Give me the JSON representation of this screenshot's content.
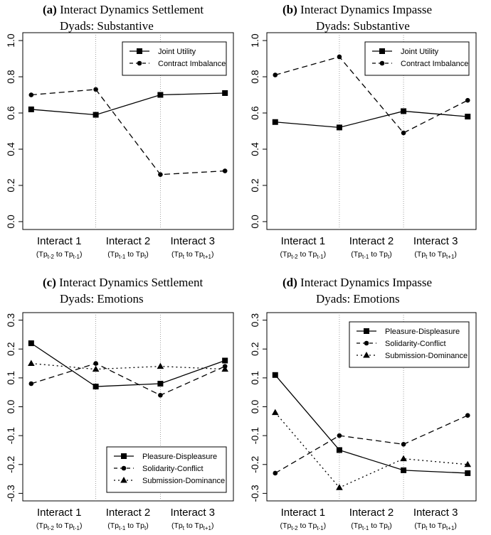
{
  "chart_data": [
    {
      "id": "a",
      "type": "line",
      "title_prefix": "(a)",
      "title_line1": "Interact Dynamics Settlement",
      "title_line2": "Dyads: Substantive",
      "categories": [
        "Interact 1",
        "Interact 2",
        "Interact 3"
      ],
      "category_subtitles": [
        "(Tp_{t-2} to Tp_{t-1})",
        "(Tp_{t-1} to Tp_{t})",
        "(Tp_{t} to Tp_{t+1})"
      ],
      "x": [
        0,
        1,
        2,
        3
      ],
      "ylim": [
        0,
        1
      ],
      "yticks": [
        0.0,
        0.2,
        0.4,
        0.6,
        0.8,
        1.0
      ],
      "ytick_labels": [
        "0.0",
        "0.2",
        "0.4",
        "0.6",
        "0.8",
        "1.0"
      ],
      "legend_position": "top-right",
      "series": [
        {
          "name": "Joint Utility",
          "linestyle": "solid",
          "marker": "square",
          "values": [
            0.62,
            0.59,
            0.7,
            0.71
          ]
        },
        {
          "name": "Contract Imbalance",
          "linestyle": "dashed",
          "marker": "circle",
          "values": [
            0.7,
            0.73,
            0.26,
            0.28
          ]
        }
      ]
    },
    {
      "id": "b",
      "type": "line",
      "title_prefix": "(b)",
      "title_line1": "Interact Dynamics Impasse",
      "title_line2": "Dyads: Substantive",
      "categories": [
        "Interact 1",
        "Interact 2",
        "Interact 3"
      ],
      "category_subtitles": [
        "(Tp_{t-2} to Tp_{t-1})",
        "(Tp_{t-1} to Tp_{t})",
        "(Tp_{t} to Tp_{t+1})"
      ],
      "x": [
        0,
        1,
        2,
        3
      ],
      "ylim": [
        0,
        1
      ],
      "yticks": [
        0.0,
        0.2,
        0.4,
        0.6,
        0.8,
        1.0
      ],
      "ytick_labels": [
        "0.0",
        "0.2",
        "0.4",
        "0.6",
        "0.8",
        "1.0"
      ],
      "legend_position": "top-right",
      "series": [
        {
          "name": "Joint Utility",
          "linestyle": "solid",
          "marker": "square",
          "values": [
            0.55,
            0.52,
            0.61,
            0.58
          ]
        },
        {
          "name": "Contract Imbalance",
          "linestyle": "dashed",
          "marker": "circle",
          "values": [
            0.81,
            0.91,
            0.49,
            0.67
          ]
        }
      ]
    },
    {
      "id": "c",
      "type": "line",
      "title_prefix": "(c)",
      "title_line1": "Interact Dynamics Settlement",
      "title_line2": "Dyads: Emotions",
      "categories": [
        "Interact 1",
        "Interact 2",
        "Interact 3"
      ],
      "category_subtitles": [
        "(Tp_{t-2} to Tp_{t-1})",
        "(Tp_{t-1} to Tp_{t})",
        "(Tp_{t} to Tp_{t+1})"
      ],
      "x": [
        0,
        1,
        2,
        3
      ],
      "ylim": [
        -0.3,
        0.3
      ],
      "yticks": [
        -0.3,
        -0.2,
        -0.1,
        0.0,
        0.1,
        0.2,
        0.3
      ],
      "ytick_labels": [
        "-0.3",
        "-0.2",
        "-0.1",
        "0.0",
        "0.1",
        "0.2",
        "0.3"
      ],
      "legend_position": "bottom-right",
      "series": [
        {
          "name": "Pleasure-Displeasure",
          "linestyle": "solid",
          "marker": "square",
          "values": [
            0.22,
            0.07,
            0.08,
            0.16
          ]
        },
        {
          "name": "Solidarity-Conflict",
          "linestyle": "dashed",
          "marker": "circle",
          "values": [
            0.08,
            0.15,
            0.04,
            0.14
          ]
        },
        {
          "name": "Submission-Dominance",
          "linestyle": "dotted",
          "marker": "triangle",
          "values": [
            0.15,
            0.13,
            0.14,
            0.13
          ]
        }
      ]
    },
    {
      "id": "d",
      "type": "line",
      "title_prefix": "(d)",
      "title_line1": "Interact Dynamics Impasse",
      "title_line2": "Dyads: Emotions",
      "categories": [
        "Interact 1",
        "Interact 2",
        "Interact 3"
      ],
      "category_subtitles": [
        "(Tp_{t-2} to Tp_{t-1})",
        "(Tp_{t-1} to Tp_{t})",
        "(Tp_{t} to Tp_{t+1})"
      ],
      "x": [
        0,
        1,
        2,
        3
      ],
      "ylim": [
        -0.3,
        0.3
      ],
      "yticks": [
        -0.3,
        -0.2,
        -0.1,
        0.0,
        0.1,
        0.2,
        0.3
      ],
      "ytick_labels": [
        "-0.3",
        "-0.2",
        "-0.1",
        "0.0",
        "0.1",
        "0.2",
        "0.3"
      ],
      "legend_position": "top-right",
      "series": [
        {
          "name": "Pleasure-Displeasure",
          "linestyle": "solid",
          "marker": "square",
          "values": [
            0.11,
            -0.15,
            -0.22,
            -0.23
          ]
        },
        {
          "name": "Solidarity-Conflict",
          "linestyle": "dashed",
          "marker": "circle",
          "values": [
            -0.23,
            -0.1,
            -0.13,
            -0.03
          ]
        },
        {
          "name": "Submission-Dominance",
          "linestyle": "dotted",
          "marker": "triangle",
          "values": [
            -0.02,
            -0.28,
            -0.18,
            -0.2
          ]
        }
      ]
    }
  ]
}
